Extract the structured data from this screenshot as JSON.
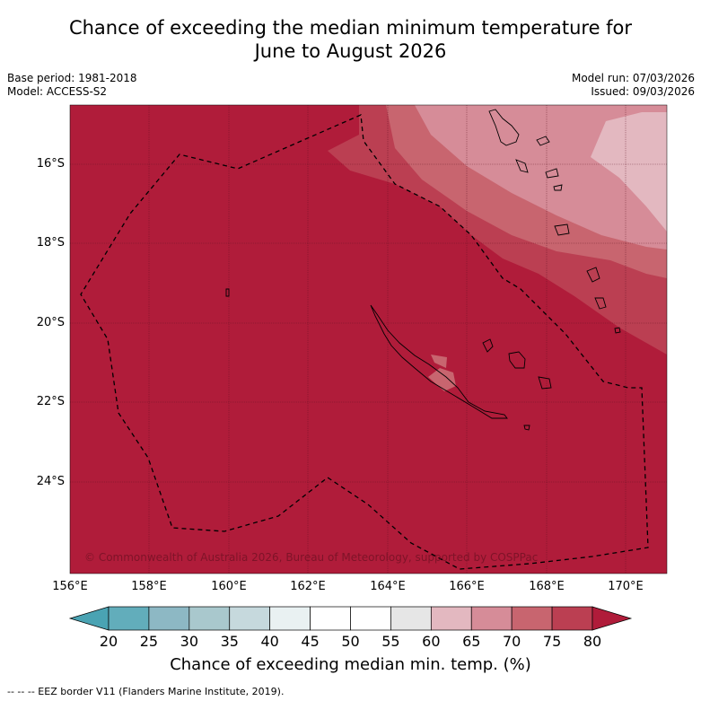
{
  "title_line1": "Chance of exceeding the median minimum temperature for",
  "title_line2": "June to August 2026",
  "base_period": "Base period: 1981-2018",
  "model": "Model: ACCESS-S2",
  "model_run": "Model run: 07/03/2026",
  "issued": "Issued: 09/03/2026",
  "copyright": "© Commonwealth of Australia 2026, Bureau of Meteorology, supported by COSPPac",
  "x_ticks": [
    "156°E",
    "158°E",
    "160°E",
    "162°E",
    "164°E",
    "166°E",
    "168°E",
    "170°E"
  ],
  "y_ticks": [
    "16°S",
    "18°S",
    "20°S",
    "22°S",
    "24°S"
  ],
  "colorbar": {
    "ticks": [
      "20",
      "25",
      "30",
      "35",
      "40",
      "45",
      "50",
      "55",
      "60",
      "65",
      "70",
      "75",
      "80"
    ],
    "label": "Chance of exceeding median min. temp. (%)",
    "colors": [
      "#62adbb",
      "#8db8c4",
      "#a9c8cd",
      "#c6d9dd",
      "#e9f1f2",
      "#ffffff",
      "#ffffff",
      "#e6e6e6",
      "#e3b8c0",
      "#d68c98",
      "#c8656f",
      "#bb3f52"
    ],
    "under_color": "#4aa3b3",
    "over_color": "#b01c3a"
  },
  "footnote": "--  --  -- EEZ border V11 (Flanders Marine Institute, 2019)."
}
